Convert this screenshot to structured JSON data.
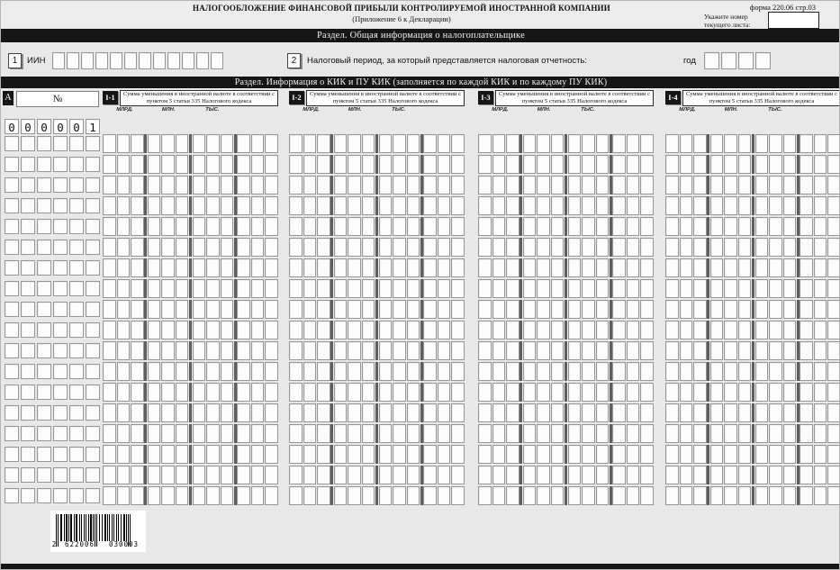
{
  "form": {
    "code": "форма 220.06  стр.03",
    "title_line1": "НАЛОГООБЛОЖЕНИЕ ФИНАНСОВОЙ ПРИБЫЛИ КОНТРОЛИРУЕМОЙ ИНОСТРАННОЙ КОМПАНИИ",
    "title_line2": "(Приложение 6 к Декларации)",
    "sheet_note_line1": "Укажите номер",
    "sheet_note_line2": "текущего листа:",
    "sheet_number_value": ""
  },
  "sections": {
    "general": "Раздел. Общая информация о налогоплательщике",
    "cfc": "Раздел. Информация о КИК и ПУ КИК (заполняется по каждой КИК и по каждому ПУ КИК)"
  },
  "fields": {
    "iin": {
      "num": "1",
      "label": "ИИН",
      "cells": 12,
      "value": ""
    },
    "tax_period": {
      "num": "2",
      "label": "Налоговый период, за который представляется налоговая отчетность:",
      "year_label": "год",
      "cells": 4,
      "value": ""
    }
  },
  "table": {
    "corner_label": "А",
    "row_number_header": "№",
    "money_subheaders": [
      "МЛРД.",
      "МЛН.",
      "ТЫС."
    ],
    "columns": [
      {
        "code": "I-1",
        "title": "Сумма уменьшения в иностранной валюте в соответствии с пунктом 5 статьи 335 Налогового кодекса"
      },
      {
        "code": "I-2",
        "title": "Сумма уменьшения в иностранной валюте в соответствии с пунктом 5 статьи 335 Налогового кодекса"
      },
      {
        "code": "I-3",
        "title": "Сумма уменьшения в иностранной валюте в соответствии с пунктом 5 статьи 335 Налогового кодекса"
      },
      {
        "code": "I-4",
        "title": "Сумма уменьшения в иностранной валюте в соответствии с пунктом 5 статьи 335 Налогового кодекса"
      }
    ],
    "first_row_number": "000001",
    "empty_rows": 18,
    "cells_per_row_number": 6,
    "groups_per_money_field": 4,
    "cells_per_group": 3
  },
  "barcode": {
    "value": "2622006030003",
    "groups": [
      "2",
      "622006",
      "030003"
    ]
  },
  "colors": {
    "band": "#161616",
    "page_bg": "#e8e8e8",
    "cell_border": "#969696",
    "group_separator": "#5e5e5e"
  }
}
